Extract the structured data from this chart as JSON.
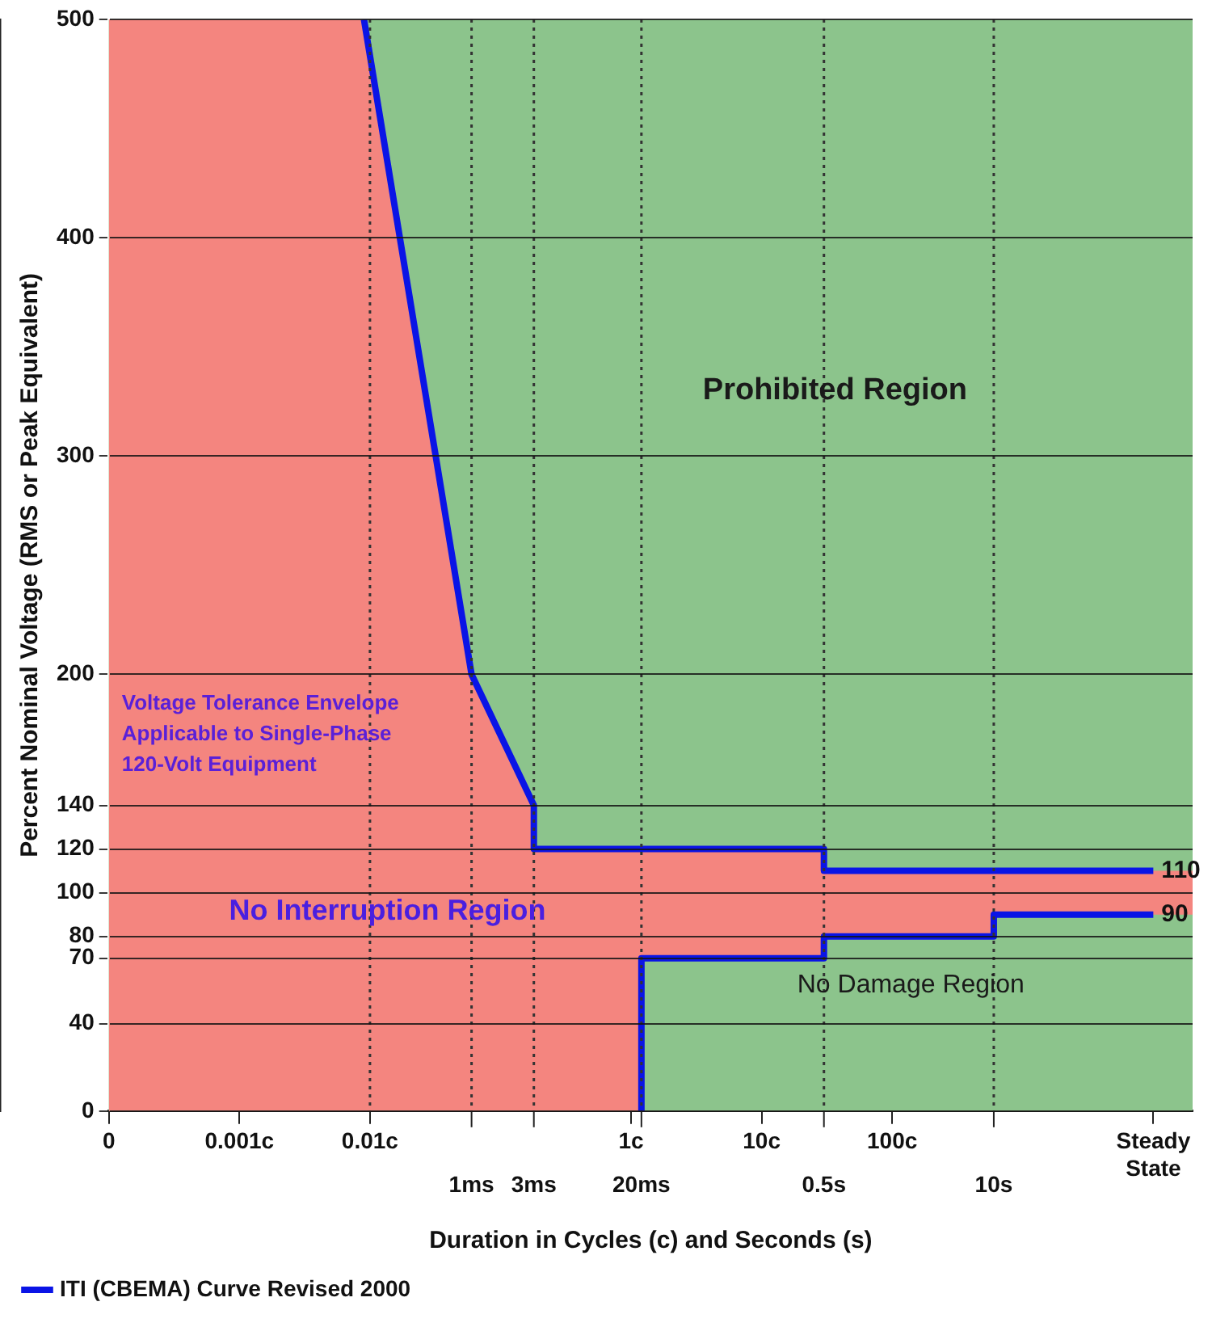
{
  "chart_data": {
    "type": "line",
    "xlabel": "Duration in Cycles (c) and Seconds (s)",
    "ylabel": "Percent Nominal Voltage (RMS or Peak Equivalent)",
    "log": "x",
    "xlim": [
      0.0001,
      20000
    ],
    "xticks": [
      {
        "value": 0.0001,
        "label": "0"
      },
      {
        "value": 0.001,
        "label": "0.001c"
      },
      {
        "value": 0.01,
        "label": "0.01c"
      },
      {
        "value": 1,
        "label": "1c"
      },
      {
        "value": 10,
        "label": "10c"
      },
      {
        "value": 100,
        "label": "100c"
      },
      {
        "value": 10000,
        "label": "Steady State"
      }
    ],
    "ylim": [
      0,
      500
    ],
    "yticks": [
      0,
      40,
      70,
      80,
      100,
      120,
      140,
      200,
      300,
      400,
      500
    ],
    "grid": "y",
    "legend": "bottom",
    "series": [
      {
        "type": "area",
        "color": "#f4857f",
        "x": [
          0.0001,
          0.009,
          0.06,
          0.18,
          0.18,
          30,
          30,
          20000
        ],
        "values": [
          500,
          500,
          200,
          140,
          120,
          120,
          110,
          110
        ]
      },
      {
        "type": "area",
        "color": "#8cc48c",
        "x": [
          1.2,
          1.2,
          30,
          30,
          600,
          600,
          20000
        ],
        "values": [
          0,
          70,
          70,
          80,
          80,
          90,
          90
        ]
      },
      {
        "name": "ITI (CBEMA) Curve Revised 2000",
        "color": "#0a14e6",
        "x": [
          0.009,
          0.06,
          0.18,
          0.18,
          30,
          30,
          10000
        ],
        "values": [
          500,
          200,
          140,
          120,
          120,
          110,
          110
        ]
      },
      {
        "color": "#0a14e6",
        "x": [
          1.2,
          1.2,
          30,
          30,
          600,
          600,
          10000
        ],
        "values": [
          0,
          70,
          70,
          80,
          80,
          90,
          90
        ]
      }
    ],
    "ref_lines": [
      {
        "axis": "x",
        "value": 0.01,
        "line_style": "dotted"
      },
      {
        "axis": "x",
        "value": 0.06,
        "label": "1ms",
        "line_style": "dotted"
      },
      {
        "axis": "x",
        "value": 0.18,
        "label": "3ms",
        "line_style": "dotted"
      },
      {
        "axis": "x",
        "value": 1.2,
        "label": "20ms",
        "line_style": "dotted"
      },
      {
        "axis": "x",
        "value": 30,
        "label": "0.5s",
        "line_style": "dotted"
      },
      {
        "axis": "x",
        "value": 600,
        "label": "10s",
        "line_style": "dotted"
      }
    ],
    "annotations": [
      "Prohibited Region",
      "Voltage Tolerance Envelope\nApplicable to Single-Phase\n120-Volt Equipment",
      "No Interruption Region",
      "No Damage Region",
      {
        "text": "110",
        "x": 10000,
        "y": 110
      },
      {
        "text": "90",
        "x": 10000,
        "y": 90
      }
    ]
  }
}
